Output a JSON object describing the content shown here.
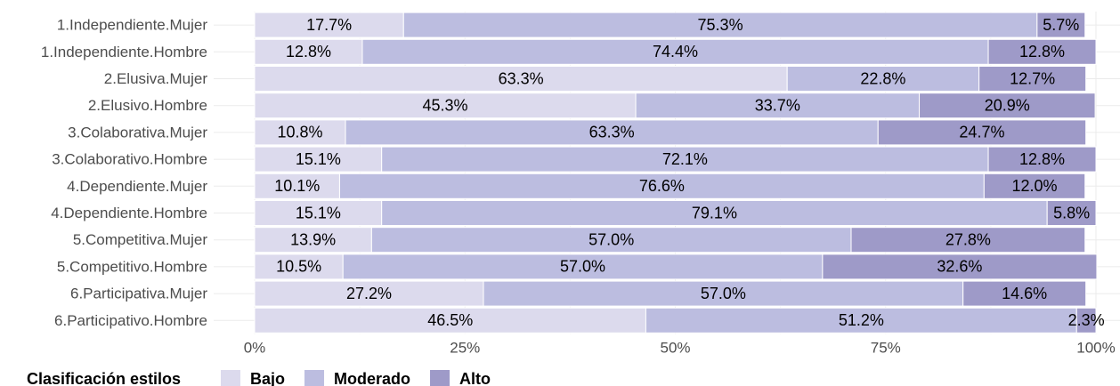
{
  "chart_data": {
    "type": "stacked_bar_horizontal",
    "categories": [
      "1.Independiente.Mujer",
      "1.Independiente.Hombre",
      "2.Elusiva.Mujer",
      "2.Elusivo.Hombre",
      "3.Colaborativa.Mujer",
      "3.Colaborativo.Hombre",
      "4.Dependiente.Mujer",
      "4.Dependiente.Hombre",
      "5.Competitiva.Mujer",
      "5.Competitivo.Hombre",
      "6.Participativa.Mujer",
      "6.Participativo.Hombre"
    ],
    "series": [
      {
        "name": "Bajo",
        "color": "#dcdaed",
        "values": [
          17.7,
          12.8,
          63.3,
          45.3,
          10.8,
          15.1,
          10.1,
          15.1,
          13.9,
          10.5,
          27.2,
          46.5
        ],
        "value_labels": [
          "17.7%",
          "12.8%",
          "63.3%",
          "45.3%",
          "10.8%",
          "15.1%",
          "10.1%",
          "15.1%",
          "13.9%",
          "10.5%",
          "27.2%",
          "46.5%"
        ]
      },
      {
        "name": "Moderado",
        "color": "#bcbde0",
        "values": [
          75.3,
          74.4,
          22.8,
          33.7,
          63.3,
          72.1,
          76.6,
          79.1,
          57.0,
          57.0,
          57.0,
          51.2
        ],
        "value_labels": [
          "75.3%",
          "74.4%",
          "22.8%",
          "33.7%",
          "63.3%",
          "72.1%",
          "76.6%",
          "79.1%",
          "57.0%",
          "57.0%",
          "57.0%",
          "51.2%"
        ]
      },
      {
        "name": "Alto",
        "color": "#9e9ac8",
        "values": [
          5.7,
          12.8,
          12.7,
          20.9,
          24.7,
          12.8,
          12.0,
          5.8,
          27.8,
          32.6,
          14.6,
          2.3
        ],
        "value_labels": [
          "5.7%",
          "12.8%",
          "12.7%",
          "20.9%",
          "24.7%",
          "12.8%",
          "12.0%",
          "5.8%",
          "27.8%",
          "32.6%",
          "14.6%",
          "2.3%"
        ]
      }
    ],
    "xlim": [
      0,
      100
    ],
    "xticks": [
      {
        "value": 0,
        "label": "0%"
      },
      {
        "value": 25,
        "label": "25%"
      },
      {
        "value": 50,
        "label": "50%"
      },
      {
        "value": 75,
        "label": "75%"
      },
      {
        "value": 100,
        "label": "100%"
      }
    ],
    "grid": true,
    "legend_title": "Clasificación estilos",
    "legend_position": "bottom"
  }
}
